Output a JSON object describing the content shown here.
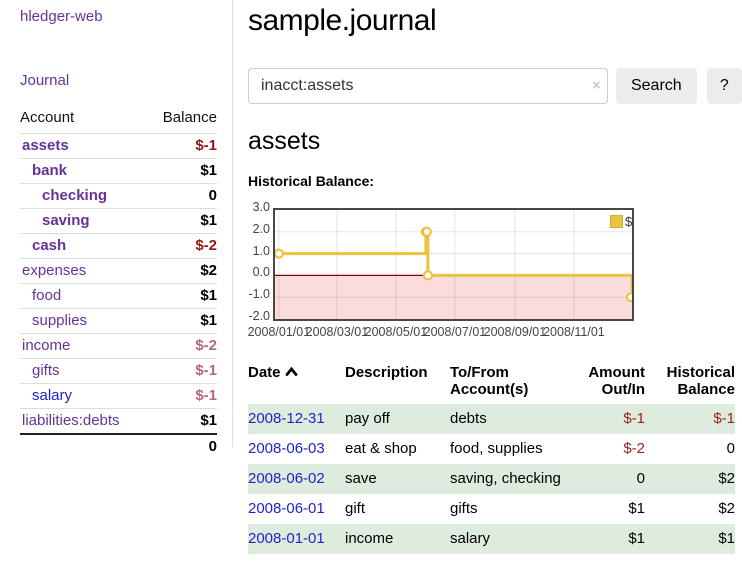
{
  "colors": {
    "link_purple": "#663399",
    "link_blue": "#2222cc",
    "negative_strong": "#931616",
    "negative_soft": "#b16973",
    "register_negative": "#9c2222",
    "row_stripe_green": "#ddecdc",
    "chart_series_gold": "#edc240",
    "chart_negative_region": "#fadcdc",
    "chart_zero_line": "#8b0000",
    "button_gray": "#ececec"
  },
  "sidebar": {
    "brand": "hledger-web",
    "journal_link": "Journal",
    "accounts_table": {
      "col_account": "Account",
      "col_balance": "Balance",
      "rows": [
        {
          "name": "assets",
          "balance": "$-1",
          "depth": 1,
          "bold": true,
          "neg": "strong"
        },
        {
          "name": "bank",
          "balance": "$1",
          "depth": 2,
          "bold": true,
          "neg": "none"
        },
        {
          "name": "checking",
          "balance": "0",
          "depth": 3,
          "bold": true,
          "neg": "none"
        },
        {
          "name": "saving",
          "balance": "$1",
          "depth": 3,
          "bold": true,
          "neg": "none"
        },
        {
          "name": "cash",
          "balance": "$-2",
          "depth": 2,
          "bold": true,
          "neg": "strong"
        },
        {
          "name": "expenses",
          "balance": "$2",
          "depth": 1,
          "bold": false,
          "neg": "none"
        },
        {
          "name": "food",
          "balance": "$1",
          "depth": 2,
          "bold": false,
          "neg": "none"
        },
        {
          "name": "supplies",
          "balance": "$1",
          "depth": 2,
          "bold": false,
          "neg": "none"
        },
        {
          "name": "income",
          "balance": "$-2",
          "depth": 1,
          "bold": false,
          "neg": "soft"
        },
        {
          "name": "gifts",
          "balance": "$-1",
          "depth": 2,
          "bold": false,
          "neg": "soft"
        },
        {
          "name": "salary",
          "balance": "$-1",
          "depth": 2,
          "bold": false,
          "neg": "soft",
          "link_color": "blue"
        },
        {
          "name": "liabilities:debts",
          "balance": "$1",
          "depth": 1,
          "bold": false,
          "neg": "none"
        }
      ],
      "total": "0"
    }
  },
  "header": {
    "title": "sample.journal"
  },
  "search": {
    "value": "inacct:assets",
    "clear_icon": "×",
    "button_label": "Search",
    "help_label": "?"
  },
  "account_page": {
    "heading": "assets",
    "chart_label": "Historical Balance:"
  },
  "chart_data": {
    "type": "line",
    "title": "Historical Balance:",
    "step": true,
    "series": [
      {
        "name": "$",
        "color": "#edc240",
        "points": [
          {
            "date": "2008-01-01",
            "balance": 1
          },
          {
            "date": "2008-06-01",
            "balance": 2
          },
          {
            "date": "2008-06-02",
            "balance": 2
          },
          {
            "date": "2008-06-03",
            "balance": 0
          },
          {
            "date": "2008-12-31",
            "balance": -1
          }
        ]
      }
    ],
    "x_ticks": [
      "2008/01/01",
      "2008/03/01",
      "2008/05/01",
      "2008/07/01",
      "2008/09/01",
      "2008/11/01"
    ],
    "y_ticks": [
      "3.0",
      "2.0",
      "1.0",
      "0.0",
      "-1.0",
      "-2.0"
    ],
    "ylim": [
      -2,
      3
    ],
    "x_range": [
      "2007-12-28",
      "2008-12-31"
    ],
    "grid": true,
    "legend": {
      "label": "$",
      "position": "top-right"
    },
    "negative_region_color": "#fadcdc",
    "zero_line_color": "#8b0000"
  },
  "register_table": {
    "headers": {
      "date": "Date",
      "description": "Description",
      "to_from": "To/From Account(s)",
      "amount": "Amount Out/In",
      "balance": "Historical Balance"
    },
    "sort": {
      "column": "date",
      "icon": "chevron-up"
    },
    "rows": [
      {
        "date": "2008-12-31",
        "description": "pay off",
        "to_from": "debts",
        "amount": "$-1",
        "amount_neg": true,
        "balance": "$-1",
        "balance_neg": true
      },
      {
        "date": "2008-06-03",
        "description": "eat & shop",
        "to_from": "food, supplies",
        "amount": "$-2",
        "amount_neg": true,
        "balance": "0",
        "balance_neg": false
      },
      {
        "date": "2008-06-02",
        "description": "save",
        "to_from": "saving, checking",
        "amount": "0",
        "amount_neg": false,
        "balance": "$2",
        "balance_neg": false
      },
      {
        "date": "2008-06-01",
        "description": "gift",
        "to_from": "gifts",
        "amount": "$1",
        "amount_neg": false,
        "balance": "$2",
        "balance_neg": false
      },
      {
        "date": "2008-01-01",
        "description": "income",
        "to_from": "salary",
        "amount": "$1",
        "amount_neg": false,
        "balance": "$1",
        "balance_neg": false
      }
    ]
  }
}
